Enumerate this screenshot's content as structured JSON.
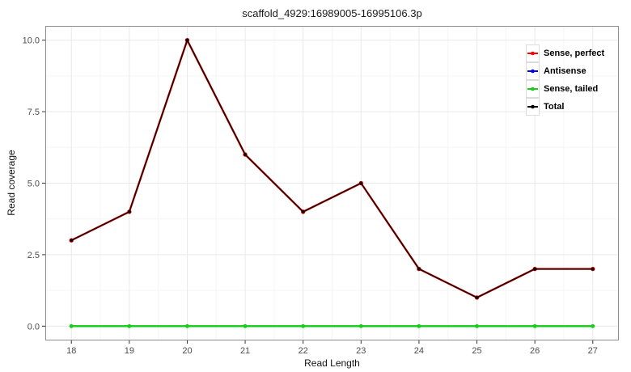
{
  "title": "scaffold_4929:16989005-16995106.3p",
  "chart_data": {
    "type": "line",
    "title": "scaffold_4929:16989005-16995106.3p",
    "xlabel": "Read Length",
    "ylabel": "Read coverage",
    "x": [
      18,
      19,
      20,
      21,
      22,
      23,
      24,
      25,
      26,
      27
    ],
    "series": [
      {
        "name": "Sense, perfect",
        "color": "#FF0000",
        "values": [
          3,
          4,
          10,
          6,
          4,
          5,
          2,
          1,
          2,
          2
        ]
      },
      {
        "name": "Antisense",
        "color": "#0000EE",
        "values": [
          0,
          0,
          0,
          0,
          0,
          0,
          0,
          0,
          0,
          0
        ]
      },
      {
        "name": "Sense, tailed",
        "color": "#15CE15",
        "values": [
          0,
          0,
          0,
          0,
          0,
          0,
          0,
          0,
          0,
          0
        ]
      },
      {
        "name": "Total",
        "color": "#000000",
        "values": [
          3,
          4,
          10,
          6,
          4,
          5,
          2,
          1,
          2,
          2
        ]
      }
    ],
    "x_ticks": [
      18,
      19,
      20,
      21,
      22,
      23,
      24,
      25,
      26,
      27
    ],
    "y_ticks": [
      0.0,
      2.5,
      5.0,
      7.5,
      10.0
    ],
    "y_tick_labels": [
      "0.0",
      "2.5",
      "5.0",
      "7.5",
      "10.0"
    ],
    "xlim": [
      17.55,
      27.45
    ],
    "ylim": [
      -0.5,
      10.5
    ],
    "grid": "major+minor",
    "legend_position": "top-right-inside",
    "legend": [
      "Sense, perfect",
      "Antisense",
      "Sense, tailed",
      "Total"
    ]
  },
  "colors": {
    "background": "#ffffff",
    "grid_major": "#e9e9e9",
    "grid_minor": "#f5f5f5",
    "panel_border": "#8c8c8c",
    "tick": "#333333",
    "tick_label": "#4d4d4d",
    "text": "#000000"
  }
}
